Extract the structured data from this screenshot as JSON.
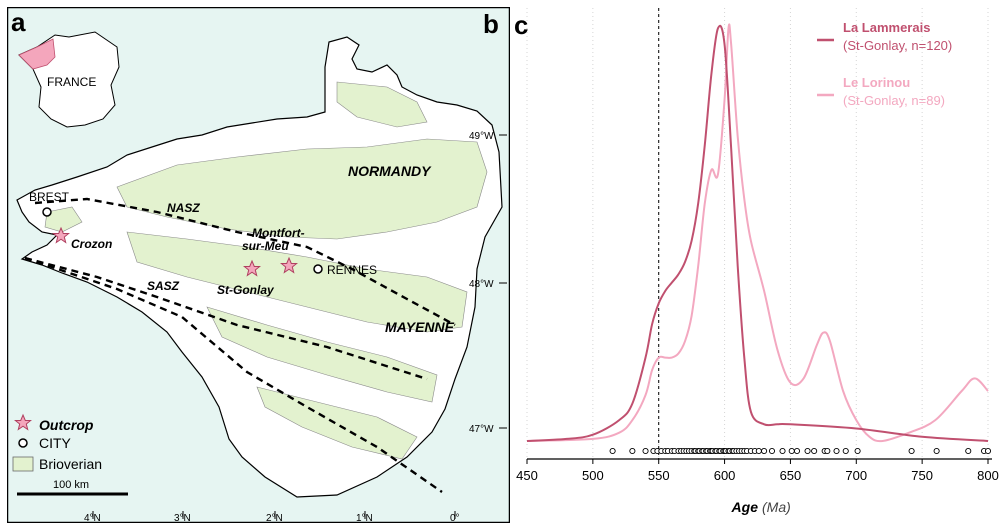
{
  "map": {
    "panel_a_letter": "a",
    "panel_b_letter": "b",
    "inset_label": "FRANCE",
    "regions": {
      "normandy": "NORMANDY",
      "mayenne": "MAYENNE"
    },
    "shear_zones": {
      "nasz": "NASZ",
      "sasz": "SASZ"
    },
    "cities": {
      "brest": "BREST",
      "rennes": "RENNES"
    },
    "outcrops": {
      "crozon": "Crozon",
      "montfort_line1": "Montfort-",
      "montfort_line2": "sur-Meu",
      "st_gonlay": "St-Gonlay"
    },
    "lon_ticks": [
      "4°N",
      "3°N",
      "2°N",
      "1°N",
      "0°"
    ],
    "lat_ticks": [
      "49°W",
      "48°W",
      "47°W"
    ],
    "legend": {
      "outcrop": "Outcrop",
      "city": "CITY",
      "brioverian": "Brioverian"
    },
    "scale_bar": "100 km",
    "colors": {
      "sea": "#e6f5f2",
      "land": "#ffffff",
      "brioverian": "#e3f2cf",
      "outcrop": "#f4a6bc"
    }
  },
  "chart_data": {
    "panel_letter": "c",
    "type": "line",
    "xlabel": "Age",
    "xlabel_unit": "(Ma)",
    "xlim": [
      450,
      800
    ],
    "x_ticks": [
      450,
      500,
      550,
      600,
      650,
      700,
      750,
      800
    ],
    "reference_line": 550,
    "grid": "vertical dotted",
    "legend_position": "top-right",
    "series": [
      {
        "name": "La Lammerais",
        "subtitle": "(St-Gonlay, n=120)",
        "color": "#c0506f",
        "x": [
          450,
          480,
          500,
          520,
          530,
          540,
          545,
          550,
          555,
          560,
          565,
          570,
          575,
          580,
          585,
          590,
          595,
          600,
          605,
          610,
          615,
          620,
          630,
          640,
          650,
          700,
          750,
          800
        ],
        "y": [
          0.0,
          0.005,
          0.015,
          0.05,
          0.09,
          0.2,
          0.28,
          0.33,
          0.36,
          0.38,
          0.4,
          0.43,
          0.48,
          0.57,
          0.71,
          0.88,
          0.99,
          0.95,
          0.7,
          0.42,
          0.2,
          0.07,
          0.04,
          0.04,
          0.04,
          0.03,
          0.01,
          0.0
        ]
      },
      {
        "name": "Le Lorinou",
        "subtitle": "(St-Gonlay, n=89)",
        "color": "#f3a8c0",
        "x": [
          450,
          500,
          520,
          530,
          540,
          545,
          550,
          555,
          560,
          565,
          570,
          575,
          580,
          585,
          590,
          595,
          600,
          603,
          605,
          610,
          615,
          620,
          630,
          640,
          650,
          660,
          670,
          675,
          680,
          690,
          700,
          710,
          720,
          740,
          760,
          780,
          790,
          800
        ],
        "y": [
          0.0,
          0.005,
          0.02,
          0.05,
          0.11,
          0.17,
          0.2,
          0.2,
          0.2,
          0.21,
          0.24,
          0.3,
          0.42,
          0.57,
          0.65,
          0.64,
          0.82,
          0.99,
          0.95,
          0.73,
          0.58,
          0.48,
          0.36,
          0.22,
          0.14,
          0.15,
          0.23,
          0.26,
          0.24,
          0.12,
          0.05,
          0.01,
          0.0,
          0.02,
          0.05,
          0.12,
          0.15,
          0.12
        ]
      }
    ],
    "rug_ages": [
      515,
      530,
      540,
      546,
      549,
      552,
      555,
      557,
      560,
      562,
      565,
      567,
      569,
      571,
      573,
      575,
      577,
      578,
      580,
      581,
      583,
      584,
      586,
      587,
      589,
      590,
      591,
      593,
      594,
      596,
      597,
      599,
      600,
      601,
      603,
      604,
      606,
      607,
      609,
      611,
      613,
      615,
      617,
      620,
      623,
      626,
      630,
      636,
      644,
      651,
      655,
      663,
      668,
      676,
      678,
      685,
      692,
      701,
      742,
      761,
      785,
      797,
      800
    ]
  }
}
